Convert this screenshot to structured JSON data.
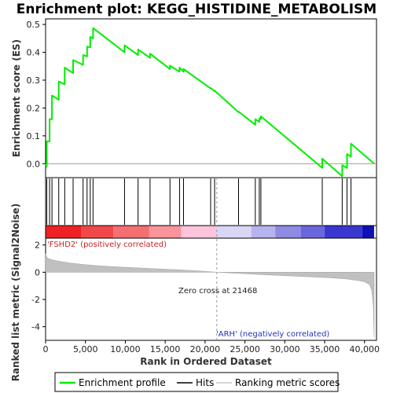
{
  "chart_data": {
    "type": "line",
    "title": "Enrichment plot: KEGG_HISTIDINE_METABOLISM",
    "xlabel": "Rank in Ordered Dataset",
    "ylabel_top": "Enrichment score (ES)",
    "ylabel_bottom": "Ranked list metric (Signal2Noise)",
    "xlim": [
      0,
      41500
    ],
    "ylim_top": [
      -0.05,
      0.52
    ],
    "ylim_bottom": [
      -5,
      2.5
    ],
    "x_ticks": [
      0,
      5000,
      10000,
      15000,
      20000,
      25000,
      30000,
      35000,
      40000
    ],
    "x_tick_labels": [
      "0",
      "5,000",
      "10,000",
      "15,000",
      "20,000",
      "25,000",
      "30,000",
      "35,000",
      "40,000"
    ],
    "y_ticks_top": [
      0.0,
      0.1,
      0.2,
      0.3,
      0.4,
      0.5
    ],
    "y_tick_labels_top": [
      "0.0",
      "0.1",
      "0.2",
      "0.3",
      "0.4",
      "0.5"
    ],
    "y_ticks_bottom": [
      2,
      0,
      -2,
      -4
    ],
    "y_tick_labels_bottom": [
      "2",
      "0",
      "-2",
      "-4"
    ],
    "grid": false,
    "enrichment_color": "#00ee00",
    "hits": [
      150,
      500,
      800,
      1650,
      2400,
      3450,
      4700,
      5200,
      5600,
      5950,
      9900,
      11600,
      13100,
      15600,
      16800,
      17300,
      20700,
      21200,
      24200,
      26300,
      26800,
      27000,
      34700,
      37200,
      37800,
      38300
    ],
    "es_points": [
      [
        0,
        0.0
      ],
      [
        150,
        -0.01
      ],
      [
        150,
        0.08
      ],
      [
        500,
        0.08
      ],
      [
        500,
        0.16
      ],
      [
        800,
        0.16
      ],
      [
        800,
        0.245
      ],
      [
        1650,
        0.23
      ],
      [
        1650,
        0.295
      ],
      [
        2400,
        0.285
      ],
      [
        2400,
        0.345
      ],
      [
        3450,
        0.325
      ],
      [
        3450,
        0.372
      ],
      [
        4700,
        0.355
      ],
      [
        4700,
        0.39
      ],
      [
        5200,
        0.385
      ],
      [
        5200,
        0.42
      ],
      [
        5600,
        0.418
      ],
      [
        5600,
        0.455
      ],
      [
        5950,
        0.45
      ],
      [
        5950,
        0.487
      ],
      [
        9900,
        0.4
      ],
      [
        9900,
        0.425
      ],
      [
        11600,
        0.39
      ],
      [
        11600,
        0.41
      ],
      [
        13100,
        0.38
      ],
      [
        13100,
        0.395
      ],
      [
        15600,
        0.34
      ],
      [
        15600,
        0.352
      ],
      [
        16800,
        0.33
      ],
      [
        16800,
        0.345
      ],
      [
        17300,
        0.33
      ],
      [
        17300,
        0.34
      ],
      [
        20700,
        0.27
      ],
      [
        20700,
        0.272
      ],
      [
        21200,
        0.26
      ],
      [
        21200,
        0.262
      ],
      [
        24200,
        0.185
      ],
      [
        24200,
        0.187
      ],
      [
        26300,
        0.14
      ],
      [
        26300,
        0.16
      ],
      [
        26800,
        0.15
      ],
      [
        26800,
        0.163
      ],
      [
        27000,
        0.16
      ],
      [
        27000,
        0.17
      ],
      [
        34700,
        -0.015
      ],
      [
        34700,
        0.018
      ],
      [
        37200,
        -0.045
      ],
      [
        37200,
        -0.005
      ],
      [
        37800,
        -0.015
      ],
      [
        37800,
        0.035
      ],
      [
        38300,
        0.025
      ],
      [
        38300,
        0.072
      ],
      [
        41200,
        0.0
      ]
    ],
    "metric_points": [
      [
        0,
        1.35
      ],
      [
        200,
        1.05
      ],
      [
        600,
        0.95
      ],
      [
        1500,
        0.82
      ],
      [
        3000,
        0.68
      ],
      [
        5000,
        0.55
      ],
      [
        8000,
        0.42
      ],
      [
        11000,
        0.33
      ],
      [
        14000,
        0.25
      ],
      [
        17000,
        0.17
      ],
      [
        19500,
        0.08
      ],
      [
        21468,
        0.0
      ],
      [
        24000,
        -0.08
      ],
      [
        27000,
        -0.17
      ],
      [
        30000,
        -0.25
      ],
      [
        33000,
        -0.33
      ],
      [
        35500,
        -0.4
      ],
      [
        37500,
        -0.48
      ],
      [
        39000,
        -0.58
      ],
      [
        40000,
        -0.7
      ],
      [
        40600,
        -0.9
      ],
      [
        40900,
        -1.3
      ],
      [
        41100,
        -2.4
      ],
      [
        41200,
        -4.8
      ]
    ],
    "bar_segments": [
      {
        "from": 0,
        "to": 4500,
        "color": "#ee2222"
      },
      {
        "from": 4500,
        "to": 8500,
        "color": "#f04848"
      },
      {
        "from": 8500,
        "to": 13000,
        "color": "#f46f72"
      },
      {
        "from": 13000,
        "to": 17000,
        "color": "#f8949a"
      },
      {
        "from": 17000,
        "to": 21468,
        "color": "#fdc4dc"
      },
      {
        "from": 21468,
        "to": 25800,
        "color": "#d9d5f5"
      },
      {
        "from": 25800,
        "to": 28800,
        "color": "#b6b3ee"
      },
      {
        "from": 28800,
        "to": 32000,
        "color": "#8e8be4"
      },
      {
        "from": 32000,
        "to": 35000,
        "color": "#6a67dc"
      },
      {
        "from": 35000,
        "to": 39700,
        "color": "#3a37d0"
      },
      {
        "from": 39700,
        "to": 41200,
        "color": "#1010b8"
      }
    ],
    "annotations": {
      "positive": "'FSHD2' (positively correlated)",
      "negative": "'ARH' (negatively correlated)",
      "zero_cross": "Zero cross at 21468",
      "zero_cross_x": 21468
    },
    "legend": {
      "placement": "bottom",
      "entries": [
        "Enrichment profile",
        "Hits",
        "Ranking metric scores"
      ]
    }
  }
}
